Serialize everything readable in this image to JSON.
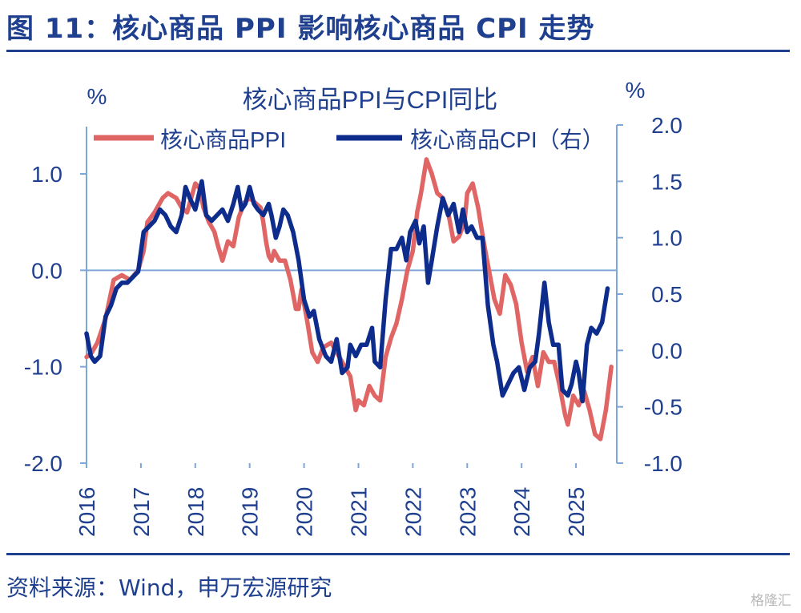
{
  "header": {
    "title": "图 11：核心商品 PPI 影响核心商品 CPI 走势"
  },
  "footer": {
    "source": "资料来源：Wind，申万宏源研究",
    "watermark": "格隆汇"
  },
  "colors": {
    "ppi": "#e06666",
    "cpi": "#0d2c8c",
    "text": "#1f3f8f",
    "axis": "#7ea6d8"
  },
  "chart_data": {
    "type": "line",
    "title": "核心商品PPI与CPI同比",
    "left_unit": "%",
    "right_unit": "%",
    "x_ticks": [
      "2016",
      "2017",
      "2018",
      "2019",
      "2020",
      "2021",
      "2022",
      "2023",
      "2024",
      "2025"
    ],
    "y_left": {
      "ticks": [
        "1.0",
        "0.0",
        "-1.0",
        "-2.0"
      ],
      "range": [
        -2.0,
        1.0
      ]
    },
    "y_right": {
      "ticks": [
        "2.0",
        "1.5",
        "1.0",
        "0.5",
        "0.0",
        "-0.5",
        "-1.0"
      ],
      "range": [
        -1.0,
        2.0
      ]
    },
    "legend": [
      "核心商品PPI",
      "核心商品CPI（右）"
    ],
    "legend_position": "top",
    "series": [
      {
        "name": "核心商品PPI",
        "axis": "left",
        "points": [
          [
            2016.0,
            -0.9
          ],
          [
            2016.1,
            -0.85
          ],
          [
            2016.2,
            -0.75
          ],
          [
            2016.35,
            -0.5
          ],
          [
            2016.5,
            -0.1
          ],
          [
            2016.65,
            -0.05
          ],
          [
            2016.8,
            -0.1
          ],
          [
            2016.95,
            0.0
          ],
          [
            2017.05,
            0.2
          ],
          [
            2017.12,
            0.5
          ],
          [
            2017.25,
            0.6
          ],
          [
            2017.4,
            0.75
          ],
          [
            2017.5,
            0.8
          ],
          [
            2017.65,
            0.75
          ],
          [
            2017.75,
            0.65
          ],
          [
            2017.85,
            0.6
          ],
          [
            2017.95,
            0.8
          ],
          [
            2018.0,
            0.9
          ],
          [
            2018.08,
            0.85
          ],
          [
            2018.15,
            0.65
          ],
          [
            2018.25,
            0.5
          ],
          [
            2018.35,
            0.4
          ],
          [
            2018.42,
            0.25
          ],
          [
            2018.5,
            0.1
          ],
          [
            2018.6,
            0.3
          ],
          [
            2018.7,
            0.25
          ],
          [
            2018.8,
            0.55
          ],
          [
            2018.9,
            0.7
          ],
          [
            2019.0,
            0.75
          ],
          [
            2019.1,
            0.7
          ],
          [
            2019.2,
            0.65
          ],
          [
            2019.25,
            0.5
          ],
          [
            2019.3,
            0.3
          ],
          [
            2019.35,
            0.15
          ],
          [
            2019.4,
            0.1
          ],
          [
            2019.45,
            0.2
          ],
          [
            2019.55,
            0.1
          ],
          [
            2019.65,
            0.1
          ],
          [
            2019.75,
            -0.1
          ],
          [
            2019.85,
            -0.4
          ],
          [
            2019.9,
            -0.4
          ],
          [
            2019.95,
            -0.2
          ],
          [
            2020.05,
            -0.5
          ],
          [
            2020.15,
            -0.85
          ],
          [
            2020.25,
            -0.95
          ],
          [
            2020.35,
            -0.8
          ],
          [
            2020.5,
            -0.75
          ],
          [
            2020.65,
            -0.9
          ],
          [
            2020.75,
            -1.0
          ],
          [
            2020.85,
            -1.1
          ],
          [
            2020.95,
            -1.45
          ],
          [
            2021.0,
            -1.35
          ],
          [
            2021.1,
            -1.4
          ],
          [
            2021.2,
            -1.2
          ],
          [
            2021.3,
            -1.3
          ],
          [
            2021.4,
            -1.35
          ],
          [
            2021.5,
            -0.9
          ],
          [
            2021.6,
            -0.7
          ],
          [
            2021.7,
            -0.55
          ],
          [
            2021.8,
            -0.3
          ],
          [
            2021.9,
            0.0
          ],
          [
            2022.0,
            0.2
          ],
          [
            2022.08,
            0.6
          ],
          [
            2022.15,
            0.8
          ],
          [
            2022.25,
            1.15
          ],
          [
            2022.35,
            1.0
          ],
          [
            2022.45,
            0.8
          ],
          [
            2022.55,
            0.75
          ],
          [
            2022.65,
            0.6
          ],
          [
            2022.75,
            0.3
          ],
          [
            2022.85,
            0.35
          ],
          [
            2022.95,
            0.5
          ],
          [
            2023.0,
            0.8
          ],
          [
            2023.1,
            0.9
          ],
          [
            2023.2,
            0.65
          ],
          [
            2023.3,
            0.3
          ],
          [
            2023.4,
            0.0
          ],
          [
            2023.5,
            -0.3
          ],
          [
            2023.6,
            -0.45
          ],
          [
            2023.7,
            -0.05
          ],
          [
            2023.8,
            -0.15
          ],
          [
            2023.9,
            -0.35
          ],
          [
            2024.0,
            -0.75
          ],
          [
            2024.1,
            -1.05
          ],
          [
            2024.2,
            -0.9
          ],
          [
            2024.3,
            -1.2
          ],
          [
            2024.4,
            -0.85
          ],
          [
            2024.5,
            -0.95
          ],
          [
            2024.6,
            -0.95
          ],
          [
            2024.7,
            -1.2
          ],
          [
            2024.8,
            -1.5
          ],
          [
            2024.85,
            -1.6
          ],
          [
            2024.95,
            -1.3
          ],
          [
            2025.05,
            -1.4
          ],
          [
            2025.15,
            -1.25
          ],
          [
            2025.25,
            -1.45
          ],
          [
            2025.35,
            -1.7
          ],
          [
            2025.45,
            -1.75
          ],
          [
            2025.55,
            -1.45
          ],
          [
            2025.65,
            -1.0
          ]
        ]
      },
      {
        "name": "核心商品CPI（右）",
        "axis": "right",
        "points": [
          [
            2016.0,
            0.15
          ],
          [
            2016.08,
            -0.05
          ],
          [
            2016.15,
            -0.1
          ],
          [
            2016.25,
            -0.05
          ],
          [
            2016.35,
            0.3
          ],
          [
            2016.45,
            0.4
          ],
          [
            2016.55,
            0.55
          ],
          [
            2016.65,
            0.6
          ],
          [
            2016.75,
            0.6
          ],
          [
            2016.85,
            0.65
          ],
          [
            2016.95,
            0.7
          ],
          [
            2017.05,
            1.05
          ],
          [
            2017.15,
            1.1
          ],
          [
            2017.25,
            1.15
          ],
          [
            2017.35,
            1.25
          ],
          [
            2017.45,
            1.2
          ],
          [
            2017.55,
            1.1
          ],
          [
            2017.65,
            1.05
          ],
          [
            2017.75,
            1.2
          ],
          [
            2017.82,
            1.45
          ],
          [
            2017.9,
            1.35
          ],
          [
            2018.0,
            1.25
          ],
          [
            2018.05,
            1.35
          ],
          [
            2018.12,
            1.5
          ],
          [
            2018.2,
            1.2
          ],
          [
            2018.3,
            1.15
          ],
          [
            2018.4,
            1.2
          ],
          [
            2018.5,
            1.25
          ],
          [
            2018.6,
            1.15
          ],
          [
            2018.7,
            1.3
          ],
          [
            2018.78,
            1.45
          ],
          [
            2018.85,
            1.25
          ],
          [
            2018.92,
            1.3
          ],
          [
            2019.0,
            1.45
          ],
          [
            2019.08,
            1.3
          ],
          [
            2019.15,
            1.25
          ],
          [
            2019.25,
            1.2
          ],
          [
            2019.35,
            1.3
          ],
          [
            2019.4,
            1.2
          ],
          [
            2019.48,
            1.0
          ],
          [
            2019.55,
            1.1
          ],
          [
            2019.62,
            1.25
          ],
          [
            2019.7,
            1.2
          ],
          [
            2019.8,
            1.05
          ],
          [
            2019.9,
            0.8
          ],
          [
            2020.0,
            0.45
          ],
          [
            2020.1,
            0.3
          ],
          [
            2020.18,
            0.35
          ],
          [
            2020.28,
            0.1
          ],
          [
            2020.4,
            -0.05
          ],
          [
            2020.5,
            -0.1
          ],
          [
            2020.6,
            0.1
          ],
          [
            2020.7,
            -0.2
          ],
          [
            2020.8,
            -0.15
          ],
          [
            2020.85,
            0.05
          ],
          [
            2020.95,
            -0.05
          ],
          [
            2021.05,
            0.05
          ],
          [
            2021.15,
            0.05
          ],
          [
            2021.25,
            0.2
          ],
          [
            2021.3,
            -0.1
          ],
          [
            2021.4,
            -0.15
          ],
          [
            2021.5,
            0.45
          ],
          [
            2021.6,
            0.9
          ],
          [
            2021.7,
            0.9
          ],
          [
            2021.8,
            1.0
          ],
          [
            2021.88,
            0.8
          ],
          [
            2021.95,
            1.05
          ],
          [
            2022.05,
            1.15
          ],
          [
            2022.12,
            0.95
          ],
          [
            2022.2,
            1.1
          ],
          [
            2022.28,
            0.6
          ],
          [
            2022.35,
            0.8
          ],
          [
            2022.45,
            1.1
          ],
          [
            2022.55,
            1.35
          ],
          [
            2022.65,
            1.2
          ],
          [
            2022.75,
            1.3
          ],
          [
            2022.85,
            1.05
          ],
          [
            2022.92,
            1.25
          ],
          [
            2023.0,
            1.05
          ],
          [
            2023.08,
            1.1
          ],
          [
            2023.18,
            1.0
          ],
          [
            2023.28,
            1.0
          ],
          [
            2023.38,
            0.4
          ],
          [
            2023.48,
            0.05
          ],
          [
            2023.55,
            -0.1
          ],
          [
            2023.65,
            -0.4
          ],
          [
            2023.75,
            -0.3
          ],
          [
            2023.85,
            -0.2
          ],
          [
            2023.95,
            -0.15
          ],
          [
            2024.05,
            -0.35
          ],
          [
            2024.15,
            -0.15
          ],
          [
            2024.25,
            -0.1
          ],
          [
            2024.32,
            0.15
          ],
          [
            2024.42,
            0.6
          ],
          [
            2024.5,
            0.25
          ],
          [
            2024.58,
            0.05
          ],
          [
            2024.68,
            0.05
          ],
          [
            2024.75,
            -0.35
          ],
          [
            2024.85,
            -0.4
          ],
          [
            2024.92,
            -0.3
          ],
          [
            2025.0,
            -0.1
          ],
          [
            2025.05,
            -0.2
          ],
          [
            2025.12,
            -0.45
          ],
          [
            2025.2,
            0.05
          ],
          [
            2025.28,
            0.2
          ],
          [
            2025.38,
            0.15
          ],
          [
            2025.48,
            0.25
          ],
          [
            2025.58,
            0.55
          ]
        ]
      }
    ]
  }
}
